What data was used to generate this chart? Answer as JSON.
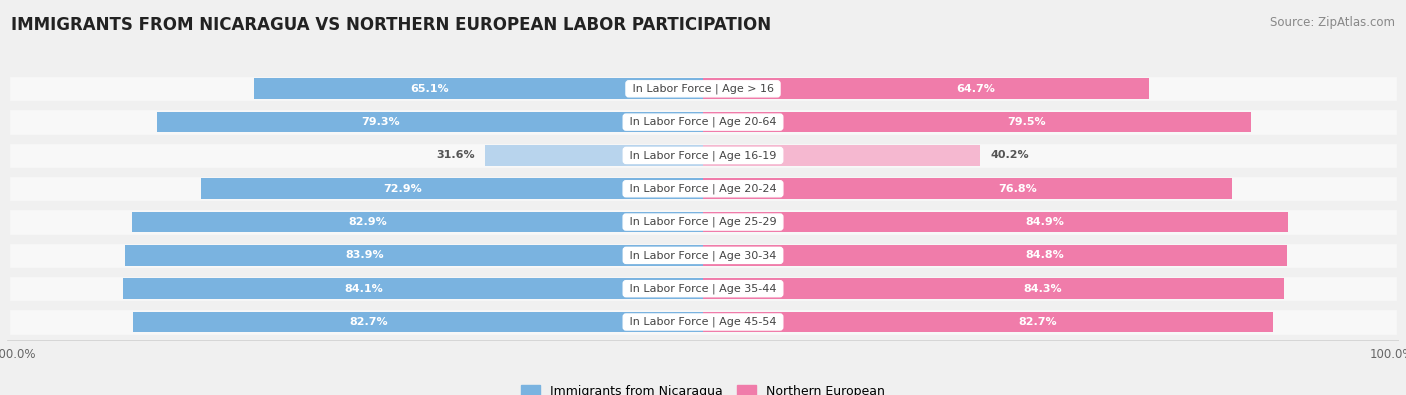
{
  "title": "IMMIGRANTS FROM NICARAGUA VS NORTHERN EUROPEAN LABOR PARTICIPATION",
  "source": "Source: ZipAtlas.com",
  "categories": [
    "In Labor Force | Age > 16",
    "In Labor Force | Age 20-64",
    "In Labor Force | Age 16-19",
    "In Labor Force | Age 20-24",
    "In Labor Force | Age 25-29",
    "In Labor Force | Age 30-34",
    "In Labor Force | Age 35-44",
    "In Labor Force | Age 45-54"
  ],
  "nicaragua_values": [
    65.1,
    79.3,
    31.6,
    72.9,
    82.9,
    83.9,
    84.1,
    82.7
  ],
  "northern_values": [
    64.7,
    79.5,
    40.2,
    76.8,
    84.9,
    84.8,
    84.3,
    82.7
  ],
  "nicaragua_color": "#7ab3e0",
  "nicaragua_color_light": "#b8d4ed",
  "northern_color": "#f07caa",
  "northern_color_light": "#f5b8d0",
  "max_value": 100.0,
  "background_color": "#f0f0f0",
  "row_bg_light": "#f8f8f8",
  "legend_nicaragua": "Immigrants from Nicaragua",
  "legend_northern": "Northern European",
  "title_fontsize": 12,
  "source_fontsize": 8.5,
  "label_fontsize": 8,
  "value_fontsize": 8
}
